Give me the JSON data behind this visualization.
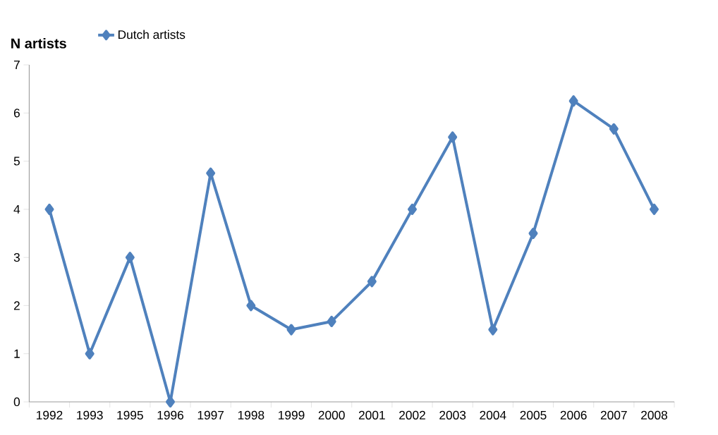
{
  "chart_data": {
    "type": "line",
    "ylabel": "N artists",
    "categories": [
      "1992",
      "1993",
      "1995",
      "1996",
      "1997",
      "1998",
      "1999",
      "2000",
      "2001",
      "2002",
      "2003",
      "2004",
      "2005",
      "2006",
      "2007",
      "2008"
    ],
    "series": [
      {
        "name": "Dutch artists",
        "color": "#4f81bd",
        "values": [
          4,
          1,
          3,
          0,
          4.75,
          2,
          1.5,
          1.67,
          2.5,
          4,
          5.5,
          1.5,
          3.5,
          6.25,
          5.67,
          4
        ]
      }
    ],
    "ylim": [
      0,
      7
    ],
    "yticks": [
      0,
      1,
      2,
      3,
      4,
      5,
      6,
      7
    ],
    "grid": false,
    "legend": "top",
    "marker": "diamond",
    "line_style": "solid"
  }
}
